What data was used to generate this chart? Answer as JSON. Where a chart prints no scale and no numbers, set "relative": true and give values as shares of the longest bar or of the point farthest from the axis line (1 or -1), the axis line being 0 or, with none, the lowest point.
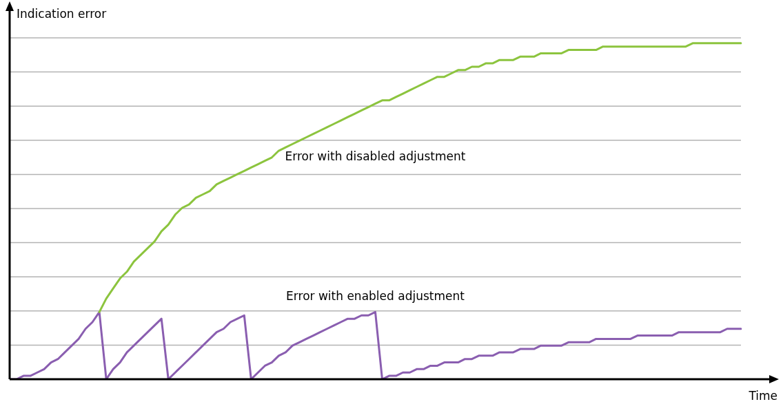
{
  "chart_data": {
    "type": "line",
    "relative": true,
    "xlabel": "Time",
    "ylabel": "Indication error",
    "grid": "y",
    "legend": false,
    "marker": "none",
    "line_style": "solid",
    "categories": [
      null,
      null,
      null,
      null,
      null,
      null,
      null,
      null,
      null,
      null,
      null,
      null,
      null,
      null,
      null,
      null,
      null,
      null,
      null,
      null,
      null,
      null,
      null,
      null,
      null,
      null,
      null,
      null,
      null,
      null,
      null,
      null,
      null,
      null,
      null,
      null,
      null,
      null,
      null,
      null,
      null,
      null,
      null,
      null,
      null,
      null,
      null,
      null,
      null,
      null,
      null,
      null,
      null,
      null,
      null,
      null,
      null,
      null,
      null,
      null,
      null,
      null,
      null,
      null,
      null,
      null,
      null,
      null,
      null,
      null,
      null,
      null,
      null,
      null,
      null,
      null,
      null,
      null,
      null,
      null,
      null,
      null,
      null,
      null,
      null,
      null,
      null,
      null,
      null,
      null,
      null,
      null,
      null,
      null,
      null,
      null,
      null,
      null,
      null,
      null,
      null,
      null,
      null,
      null,
      null,
      null,
      null
    ],
    "series": [
      {
        "name": "Error with disabled adjustment",
        "color": "#8cc43e",
        "values": [
          null,
          null,
          null,
          null,
          null,
          null,
          null,
          null,
          null,
          null,
          null,
          null,
          null,
          0.2,
          0.24,
          0.27,
          0.3,
          0.32,
          0.35,
          0.37,
          0.39,
          0.41,
          0.44,
          0.46,
          0.49,
          0.51,
          0.52,
          0.54,
          0.55,
          0.56,
          0.58,
          0.59,
          0.6,
          0.61,
          0.62,
          0.63,
          0.64,
          0.65,
          0.66,
          0.68,
          0.69,
          0.7,
          0.71,
          0.72,
          0.73,
          0.74,
          0.75,
          0.76,
          0.77,
          0.78,
          0.79,
          0.8,
          0.81,
          0.82,
          0.83,
          0.83,
          0.84,
          0.85,
          0.86,
          0.87,
          0.88,
          0.89,
          0.9,
          0.9,
          0.91,
          0.92,
          0.92,
          0.93,
          0.93,
          0.94,
          0.94,
          0.95,
          0.95,
          0.95,
          0.96,
          0.96,
          0.96,
          0.97,
          0.97,
          0.97,
          0.97,
          0.98,
          0.98,
          0.98,
          0.98,
          0.98,
          0.99,
          0.99,
          0.99,
          0.99,
          0.99,
          0.99,
          0.99,
          0.99,
          0.99,
          0.99,
          0.99,
          0.99,
          0.99,
          1,
          1,
          1,
          1,
          1,
          1,
          1,
          1
        ]
      },
      {
        "name": "Error with enabled adjustment",
        "color": "#8a5eb0",
        "values": [
          0,
          0.0,
          0.01,
          0.01,
          0.02,
          0.03,
          0.05,
          0.06,
          0.08,
          0.1,
          0.12,
          0.15,
          0.17,
          0.2,
          0,
          0.03,
          0.05,
          0.08,
          0.1,
          0.12,
          0.14,
          0.16,
          0.18,
          0,
          0.02,
          0.04,
          0.06,
          0.08,
          0.1,
          0.12,
          0.14,
          0.15,
          0.17,
          0.18,
          0.19,
          0,
          0.02,
          0.04,
          0.05,
          0.07,
          0.08,
          0.1,
          0.11,
          0.12,
          0.13,
          0.14,
          0.15,
          0.16,
          0.17,
          0.18,
          0.18,
          0.19,
          0.19,
          0.2,
          0,
          0.01,
          0.01,
          0.02,
          0.02,
          0.03,
          0.03,
          0.04,
          0.04,
          0.05,
          0.05,
          0.05,
          0.06,
          0.06,
          0.07,
          0.07,
          0.07,
          0.08,
          0.08,
          0.08,
          0.09,
          0.09,
          0.09,
          0.1,
          0.1,
          0.1,
          0.1,
          0.11,
          0.11,
          0.11,
          0.11,
          0.12,
          0.12,
          0.12,
          0.12,
          0.12,
          0.12,
          0.13,
          0.13,
          0.13,
          0.13,
          0.13,
          0.13,
          0.14,
          0.14,
          0.14,
          0.14,
          0.14,
          0.14,
          0.14,
          0.15,
          0.15,
          0.15
        ]
      }
    ]
  }
}
